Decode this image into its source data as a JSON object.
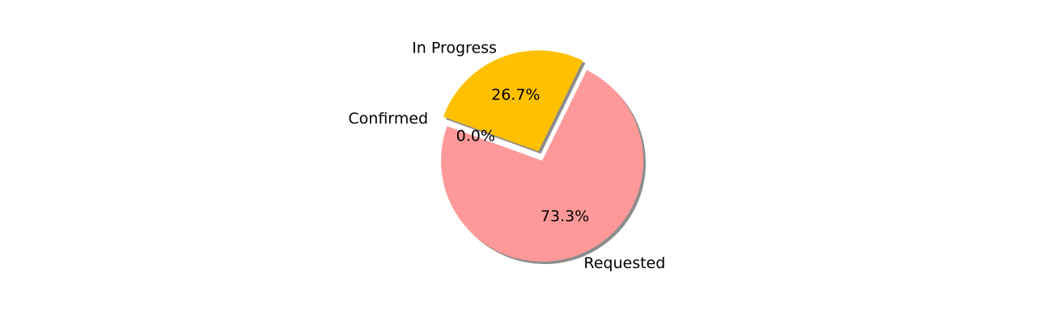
{
  "chart_data": {
    "type": "pie",
    "slices": [
      {
        "label": "Requested",
        "value": 73.3,
        "pct_text": "73.3%",
        "color": "#ff9999",
        "exploded": false
      },
      {
        "label": "In Progress",
        "value": 26.7,
        "pct_text": "26.7%",
        "color": "#ffc000",
        "exploded": true
      },
      {
        "label": "Confirmed",
        "value": 0.0,
        "pct_text": "0.0%",
        "color": "#66b3ff",
        "exploded": true
      }
    ],
    "shadow": true,
    "legend": false
  }
}
